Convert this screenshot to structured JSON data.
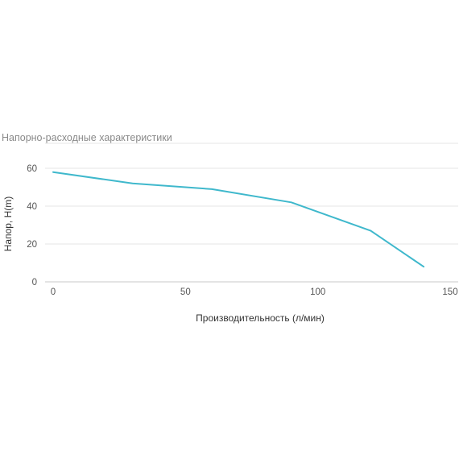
{
  "chart_data": {
    "type": "line",
    "title": "Напорно-расходные характеристики",
    "xlabel": "Производительность (л/мин)",
    "ylabel": "Напор, H(m)",
    "xlim": [
      0,
      150
    ],
    "ylim": [
      0,
      60
    ],
    "xticks": [
      0,
      50,
      100,
      150
    ],
    "yticks": [
      0,
      20,
      40,
      60
    ],
    "grid": true,
    "x": [
      0,
      30,
      60,
      90,
      120,
      140
    ],
    "series": [
      {
        "values": [
          58,
          52,
          49,
          42,
          27,
          8
        ],
        "color": "#3fb8cc"
      }
    ]
  }
}
